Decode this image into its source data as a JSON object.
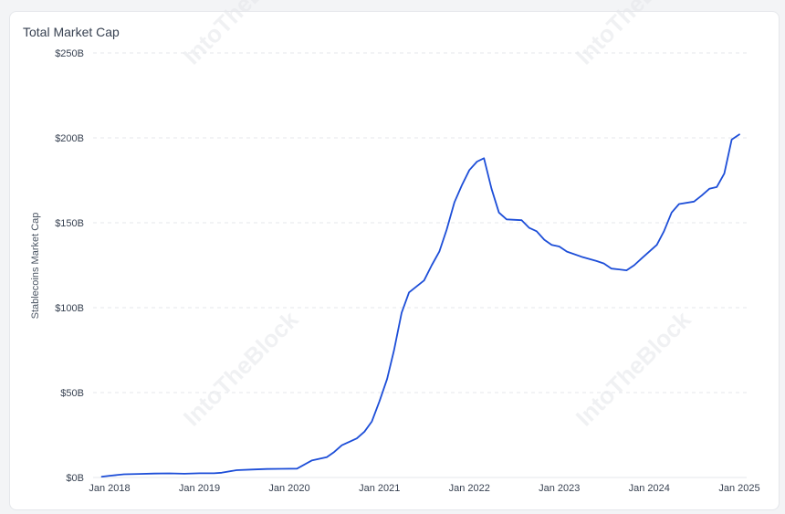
{
  "chart_data": {
    "type": "line",
    "title": "Total Market Cap",
    "ylabel": "Stablecoins Market Cap",
    "xlabel": "",
    "watermark": "IntoTheBlock",
    "ylim": [
      0,
      250
    ],
    "yticks": [
      {
        "value": 0,
        "label": "$0B"
      },
      {
        "value": 50,
        "label": "$50B"
      },
      {
        "value": 100,
        "label": "$100B"
      },
      {
        "value": 150,
        "label": "$150B"
      },
      {
        "value": 200,
        "label": "$200B"
      },
      {
        "value": 250,
        "label": "$250B"
      }
    ],
    "xlim": [
      "2017-11-01",
      "2025-02-01"
    ],
    "xticks": [
      {
        "date": "2018-01-01",
        "label": "Jan 2018"
      },
      {
        "date": "2019-01-01",
        "label": "Jan 2019"
      },
      {
        "date": "2020-01-01",
        "label": "Jan 2020"
      },
      {
        "date": "2021-01-01",
        "label": "Jan 2021"
      },
      {
        "date": "2022-01-01",
        "label": "Jan 2022"
      },
      {
        "date": "2023-01-01",
        "label": "Jan 2023"
      },
      {
        "date": "2024-01-01",
        "label": "Jan 2024"
      },
      {
        "date": "2025-01-01",
        "label": "Jan 2025"
      }
    ],
    "grid": "horizontal-dashed",
    "line_color": "#1d4ed8",
    "series": [
      {
        "values": [
          [
            "2017-12-01",
            0.5
          ],
          [
            "2018-01-01",
            1
          ],
          [
            "2018-03-01",
            1.9
          ],
          [
            "2018-05-01",
            2.1
          ],
          [
            "2018-07-01",
            2.3
          ],
          [
            "2018-09-01",
            2.4
          ],
          [
            "2018-11-01",
            2.2
          ],
          [
            "2019-01-01",
            2.5
          ],
          [
            "2019-03-01",
            2.5
          ],
          [
            "2019-04-01",
            2.8
          ],
          [
            "2019-06-01",
            4.3
          ],
          [
            "2019-08-01",
            4.7
          ],
          [
            "2019-10-01",
            5
          ],
          [
            "2019-12-01",
            5.1
          ],
          [
            "2020-02-01",
            5.2
          ],
          [
            "2020-04-01",
            10
          ],
          [
            "2020-06-01",
            12
          ],
          [
            "2020-07-01",
            15
          ],
          [
            "2020-08-01",
            19
          ],
          [
            "2020-10-01",
            23
          ],
          [
            "2020-11-01",
            27
          ],
          [
            "2020-12-01",
            33
          ],
          [
            "2021-01-01",
            45
          ],
          [
            "2021-02-01",
            58
          ],
          [
            "2021-03-01",
            75
          ],
          [
            "2021-04-01",
            97
          ],
          [
            "2021-05-01",
            109
          ],
          [
            "2021-07-01",
            116
          ],
          [
            "2021-08-01",
            125
          ],
          [
            "2021-09-01",
            133
          ],
          [
            "2021-10-01",
            146
          ],
          [
            "2021-11-01",
            162
          ],
          [
            "2021-12-01",
            172
          ],
          [
            "2022-01-01",
            181
          ],
          [
            "2022-02-01",
            186
          ],
          [
            "2022-03-01",
            188
          ],
          [
            "2022-04-01",
            170
          ],
          [
            "2022-05-01",
            156
          ],
          [
            "2022-06-01",
            152
          ],
          [
            "2022-08-01",
            151.5
          ],
          [
            "2022-09-01",
            147
          ],
          [
            "2022-10-01",
            145
          ],
          [
            "2022-11-01",
            140
          ],
          [
            "2022-12-01",
            137
          ],
          [
            "2023-01-01",
            136
          ],
          [
            "2023-02-01",
            133
          ],
          [
            "2023-04-01",
            130
          ],
          [
            "2023-06-01",
            127.5
          ],
          [
            "2023-07-01",
            126
          ],
          [
            "2023-08-01",
            123
          ],
          [
            "2023-09-01",
            122.5
          ],
          [
            "2023-10-01",
            122
          ],
          [
            "2023-11-01",
            125
          ],
          [
            "2023-12-01",
            129
          ],
          [
            "2024-02-01",
            137
          ],
          [
            "2024-03-01",
            145
          ],
          [
            "2024-04-01",
            156
          ],
          [
            "2024-05-01",
            161
          ],
          [
            "2024-07-01",
            162.5
          ],
          [
            "2024-08-01",
            166
          ],
          [
            "2024-09-01",
            170
          ],
          [
            "2024-10-01",
            171
          ],
          [
            "2024-11-01",
            179
          ],
          [
            "2024-12-01",
            199
          ],
          [
            "2025-01-01",
            202
          ]
        ]
      }
    ]
  }
}
